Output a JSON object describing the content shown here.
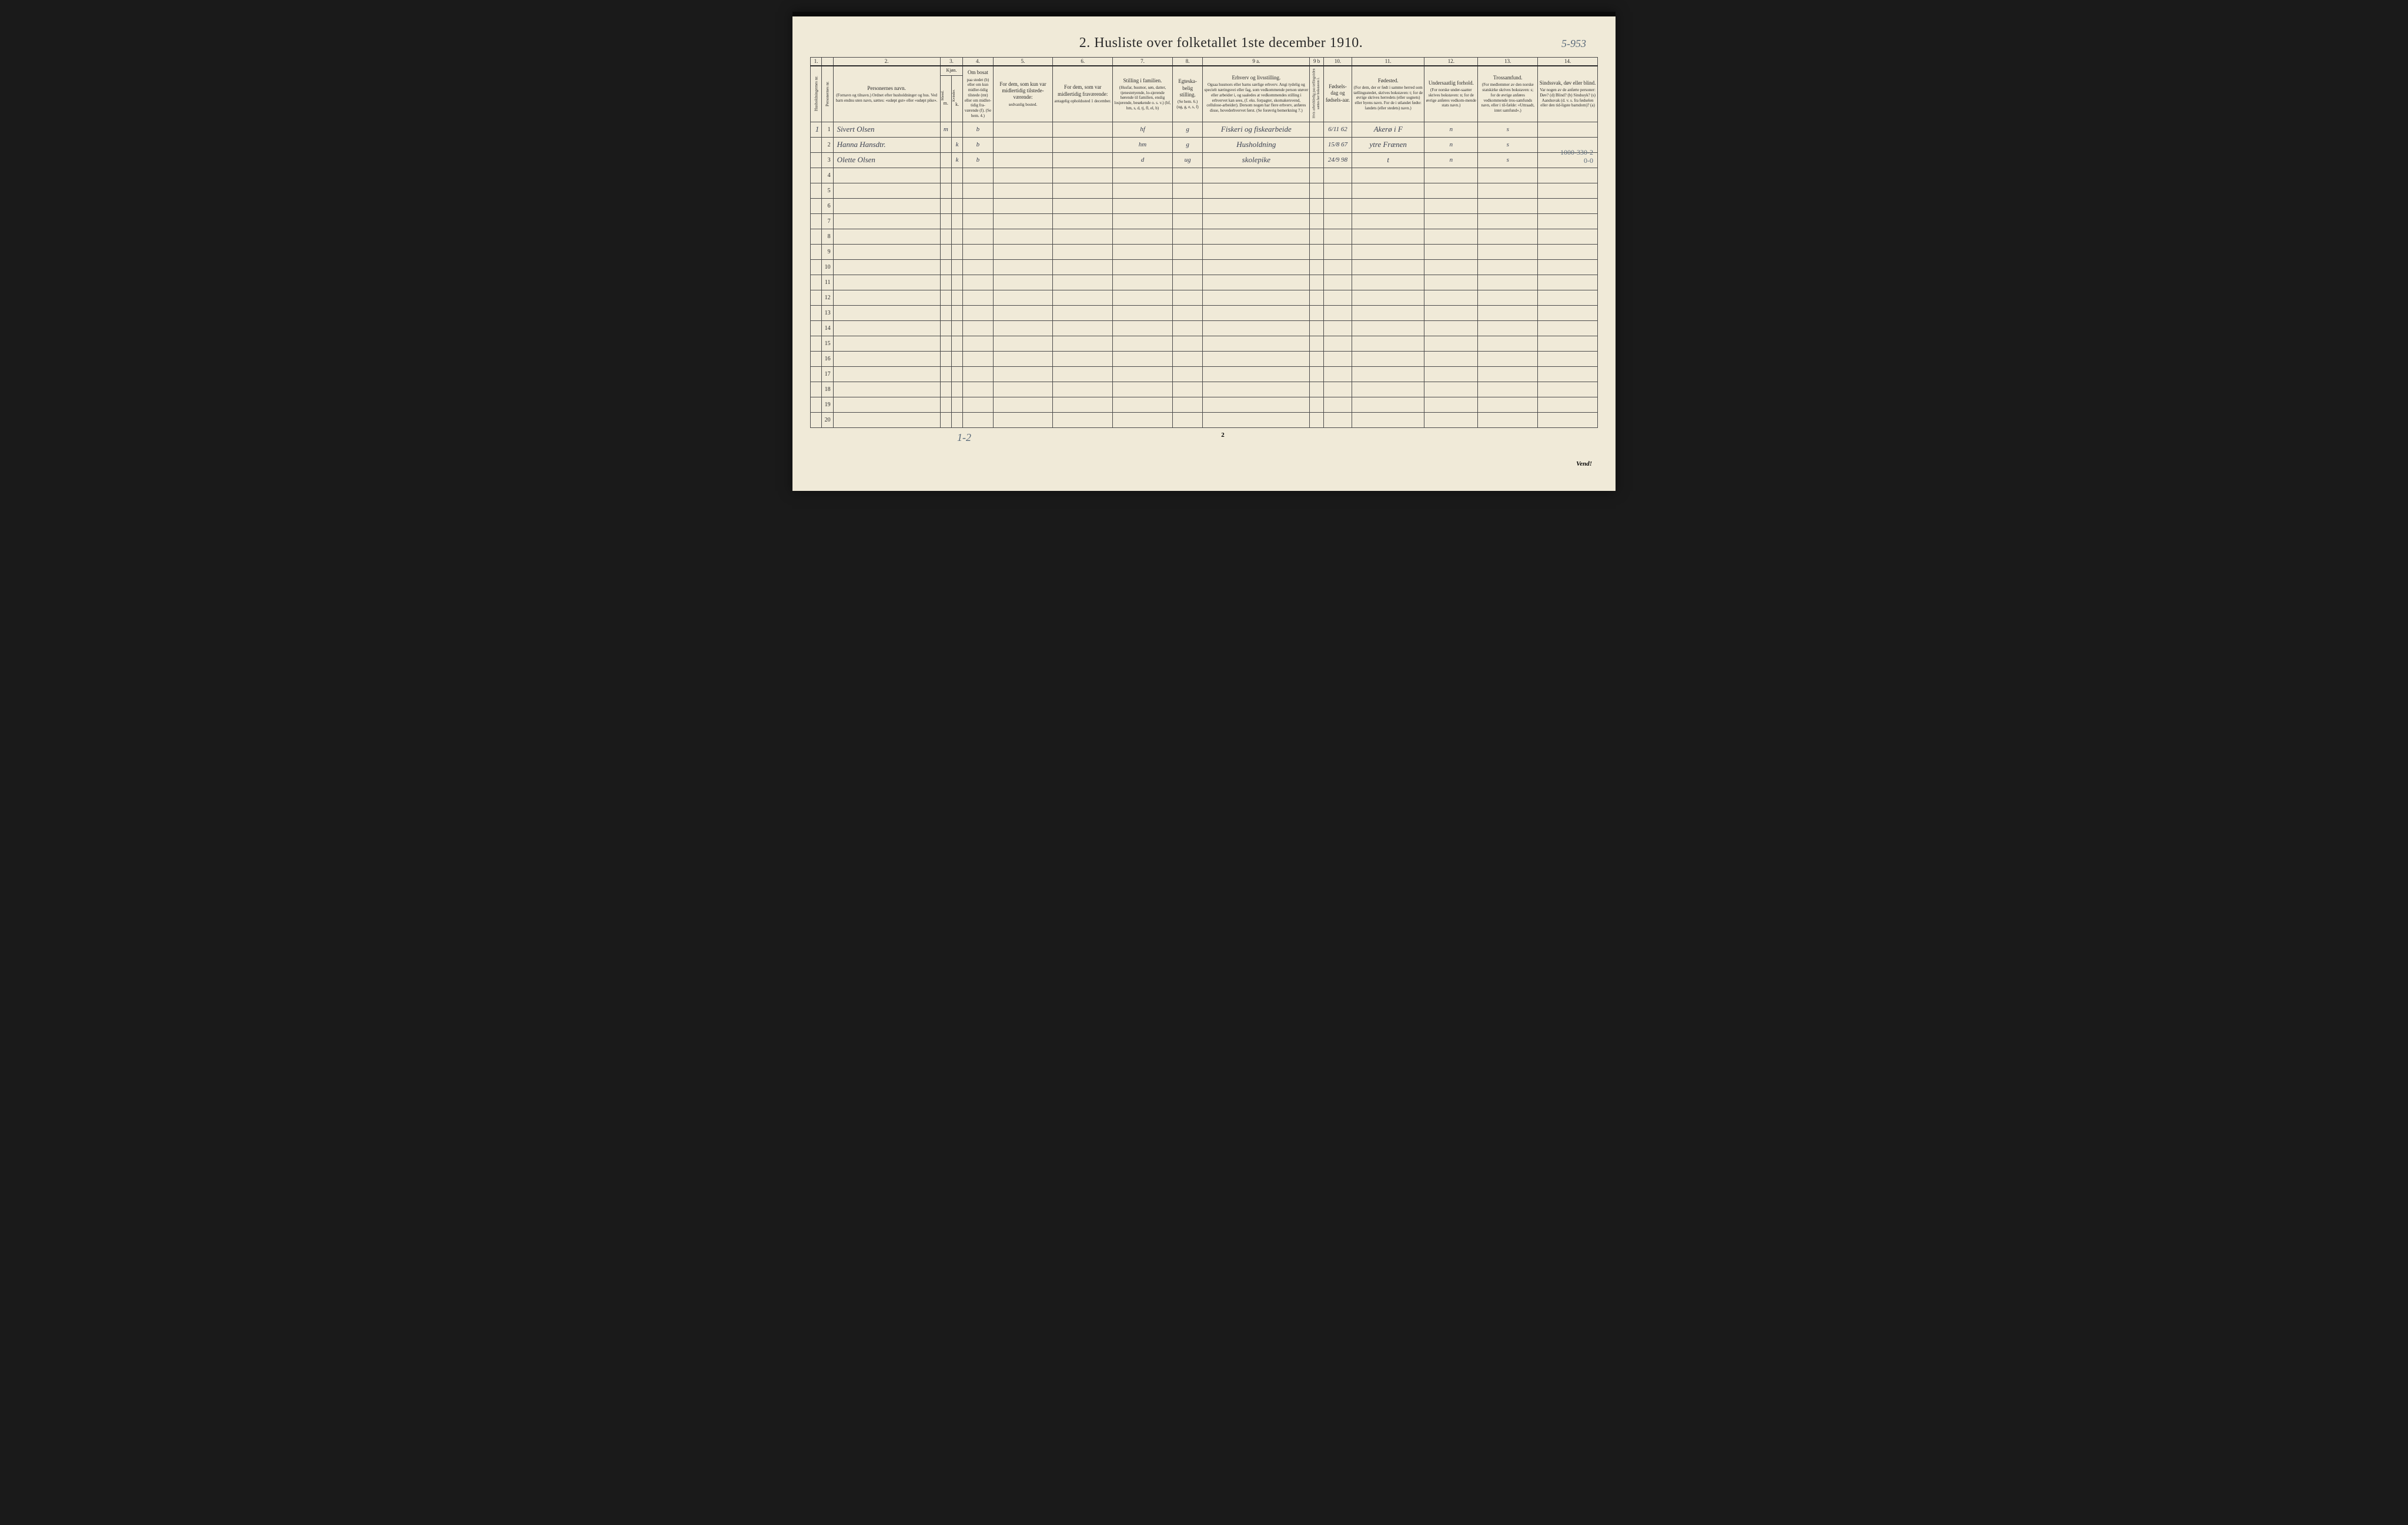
{
  "title": "2.  Husliste over folketallet 1ste december 1910.",
  "topright_hand": "5-953",
  "right_annotation_line1": "1000-330-2",
  "right_annotation_line2": "0-0",
  "colnums": [
    "1.",
    "",
    "2.",
    "3.",
    "",
    "4.",
    "5.",
    "6.",
    "7.",
    "8.",
    "9 a.",
    "9 b",
    "10.",
    "11.",
    "12.",
    "13.",
    "14."
  ],
  "headers": {
    "c1": "Husholdningernes nr.",
    "c2": "Personernes nr.",
    "c3_title": "Personernes navn.",
    "c3_sub": "(Fornavn og tilnavn.)\nOrdnet efter husholdninger og hus.\nVed barn endnu uten navn, sættes: «udøpt gut» eller «udøpt pike».",
    "c4_title": "Kjøn.",
    "c4_m": "Mænd.",
    "c4_k": "Kvinder.",
    "c4_mk": "m.  k.",
    "c5_title": "Om bosat",
    "c5_sub": "paa stedet (b) eller om kun midler-tidig tilstede (mt) eller om midler-tidig fra-værende (f). (Se bem. 4.)",
    "c6_title": "For dem, som kun var midlertidig tilstede-værende:",
    "c6_sub": "sedvanlig bosted.",
    "c7_title": "For dem, som var midlertidig fraværende:",
    "c7_sub": "antagelig opholdssted 1 december.",
    "c8_title": "Stilling i familien.",
    "c8_sub": "(Husfar, husmor, søn, datter, tjenestetyende, lo-sjerende hørende til familien, enslig losjerende, besøkende o. s. v.)\n(hf, hm, s, d, tj, fl, el, b)",
    "c9_title": "Egteska-belig stilling.",
    "c9_sub": "(Se bem. 6.)\n(ug, g, e, s, f)",
    "c10_title": "Erhverv og livsstilling.",
    "c10_sub": "Ogsaa husmors eller barns særlige erhverv. Angi tydelig og specielt næringsvei eller fag, som vedkommende person utøver eller arbeider i, og saaledes at vedkommendes stilling i erhvervet kan sees, (f. eks. forpagter, skomakersvend, cellulose-arbeider). Dersom nogen har flere erhverv, anføres disse, hovederhvervet først.\n(Se forøvrig bemerkning 7.)",
    "c10b": "Hvis arbeidsledig paa tællingstiden sættes her bokstaven l.",
    "c11_title": "Fødsels-dag og fødsels-aar.",
    "c12_title": "Fødested.",
    "c12_sub": "(For dem, der er født i samme herred som tællingsstedet, skrives bokstaven: t; for de øvrige skrives herredets (eller sognets) eller byens navn. For de i utlandet fødte: landets (eller stedets) navn.)",
    "c13_title": "Undersaatlig forhold.",
    "c13_sub": "(For norske under-saatter skrives bokstaven: n; for de øvrige anføres vedkom-mende stats navn.)",
    "c14_title": "Trossamfund.",
    "c14_sub": "(For medlemmer av den norske statskirke skrives bokstaven: s; for de øvrige anføres vedkommende tros-samfunds navn, eller i til-fælde: «Uttraadt, intet samfund».)",
    "c15_title": "Sindssvak, døv eller blind.",
    "c15_sub": "Var nogen av de anførte personer:\nDøv? (d)\nBlind? (b)\nSindssyk? (s)\nAandssvak (d. v. s. fra fødselen eller den tid-ligste barndom)? (a)"
  },
  "rows": [
    {
      "hh": "1",
      "pn": "1",
      "name": "Sivert Olsen",
      "m": "m",
      "k": "",
      "bosat": "b",
      "c6": "",
      "c7": "",
      "fam": "hf",
      "egt": "g",
      "erhverv": "Fiskeri og fiskearbeide",
      "al": "",
      "dob": "6/11 62",
      "fsted": "Akerø i F",
      "und": "n",
      "tros": "s",
      "sind": ""
    },
    {
      "hh": "",
      "pn": "2",
      "name": "Hanna Hansdtr.",
      "m": "",
      "k": "k",
      "bosat": "b",
      "c6": "",
      "c7": "",
      "fam": "hm",
      "egt": "g",
      "erhverv": "Husholdning",
      "al": "",
      "dob": "15/8 67",
      "fsted": "ytre Frænen",
      "und": "n",
      "tros": "s",
      "sind": ""
    },
    {
      "hh": "",
      "pn": "3",
      "name": "Olette Olsen",
      "m": "",
      "k": "k",
      "bosat": "b",
      "c6": "",
      "c7": "",
      "fam": "d",
      "egt": "ug",
      "erhverv": "skolepike",
      "al": "",
      "dob": "24/9 98",
      "fsted": "t",
      "und": "n",
      "tros": "s",
      "sind": ""
    }
  ],
  "row_labels": [
    "1",
    "2",
    "3",
    "4",
    "5",
    "6",
    "7",
    "8",
    "9",
    "10",
    "11",
    "12",
    "13",
    "14",
    "15",
    "16",
    "17",
    "18",
    "19",
    "20"
  ],
  "footer_left": "1-2",
  "footer_center": "2",
  "footer_right": "Vend!"
}
